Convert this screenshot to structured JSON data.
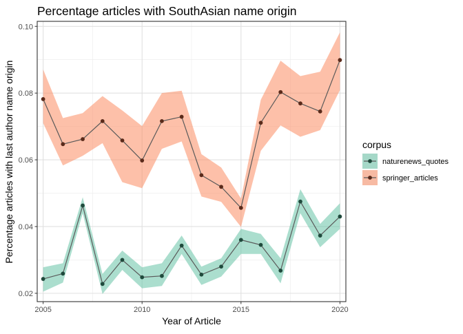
{
  "chart_data": {
    "type": "line",
    "title": "Percentage articles with SouthAsian name origin",
    "xlabel": "Year of Article",
    "ylabel": "Percentage articles with last author name origin",
    "xlim": [
      2004.7,
      2020.3
    ],
    "ylim": [
      0.0175,
      0.1015
    ],
    "x_ticks": [
      2005,
      2010,
      2015,
      2020
    ],
    "x_tick_labels": [
      "2005",
      "2010",
      "2015",
      "2020"
    ],
    "y_ticks": [
      0.02,
      0.04,
      0.06,
      0.08,
      0.1
    ],
    "y_tick_labels": [
      "0.02",
      "0.04",
      "0.06",
      "0.08",
      "0.10"
    ],
    "grid": true,
    "legend": {
      "title": "corpus",
      "position": "right"
    },
    "x": [
      2005,
      2006,
      2007,
      2008,
      2009,
      2010,
      2011,
      2012,
      2013,
      2014,
      2015,
      2016,
      2017,
      2018,
      2019,
      2020
    ],
    "series": [
      {
        "name": "naturenews_quotes",
        "color": "#1b9e77",
        "point_color": "#1f4a3c",
        "band_color": "#66c2a5",
        "values": [
          0.0243,
          0.0259,
          0.0463,
          0.0228,
          0.03,
          0.0248,
          0.0252,
          0.0343,
          0.0256,
          0.028,
          0.036,
          0.0345,
          0.0268,
          0.0475,
          0.0373,
          0.043
        ],
        "lower": [
          0.0205,
          0.0232,
          0.044,
          0.0198,
          0.027,
          0.0215,
          0.0222,
          0.0318,
          0.0225,
          0.025,
          0.0318,
          0.0318,
          0.023,
          0.044,
          0.0338,
          0.0393
        ],
        "upper": [
          0.0278,
          0.029,
          0.0488,
          0.0258,
          0.0328,
          0.0278,
          0.029,
          0.0373,
          0.028,
          0.0305,
          0.0393,
          0.0378,
          0.0305,
          0.0512,
          0.0408,
          0.047
        ]
      },
      {
        "name": "springer_articles",
        "color": "#d95f02",
        "point_color": "#5a2a1a",
        "band_color": "#fc8d62",
        "values": [
          0.0782,
          0.0647,
          0.0662,
          0.0716,
          0.0658,
          0.0598,
          0.0716,
          0.0729,
          0.0554,
          0.0519,
          0.0456,
          0.0711,
          0.0803,
          0.0769,
          0.0745,
          0.0899
        ],
        "lower": [
          0.071,
          0.0583,
          0.0612,
          0.065,
          0.0533,
          0.0515,
          0.0633,
          0.0655,
          0.049,
          0.0474,
          0.0399,
          0.0627,
          0.0703,
          0.0669,
          0.0689,
          0.0809
        ],
        "upper": [
          0.0871,
          0.0725,
          0.074,
          0.0791,
          0.0748,
          0.0701,
          0.08,
          0.0807,
          0.0617,
          0.0577,
          0.0484,
          0.078,
          0.0897,
          0.0851,
          0.0864,
          0.0982
        ]
      }
    ]
  }
}
